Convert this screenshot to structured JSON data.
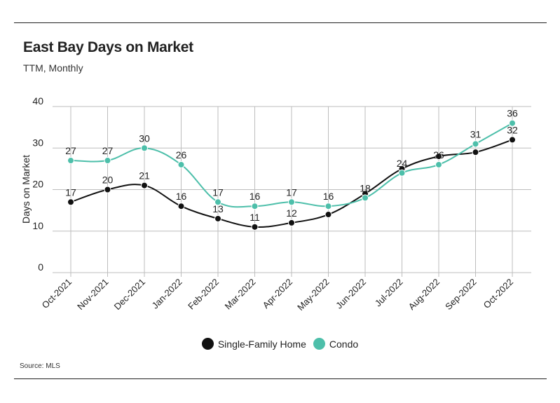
{
  "header": {
    "title": "East Bay Days on Market",
    "subtitle": "TTM, Monthly"
  },
  "footer": {
    "source": "Source:  MLS"
  },
  "colors": {
    "single_family": "#111111",
    "condo": "#4dbfaa",
    "grid": "#bdbdbd",
    "text": "#222222"
  },
  "chart_data": {
    "type": "line",
    "title": "East Bay Days on Market",
    "subtitle": "TTM, Monthly",
    "xlabel": "",
    "ylabel": "Days on Market",
    "ylim": [
      0,
      40
    ],
    "yticks": [
      0,
      10,
      20,
      30,
      40
    ],
    "grid": true,
    "legend_position": "bottom-center",
    "categories": [
      "Oct-2021",
      "Nov-2021",
      "Dec-2021",
      "Jan-2022",
      "Feb-2022",
      "Mar-2022",
      "Apr-2022",
      "May-2022",
      "Jun-2022",
      "Jul-2022",
      "Aug-2022",
      "Sep-2022",
      "Oct-2022"
    ],
    "series": [
      {
        "name": "Single-Family Home",
        "color": "#111111",
        "values": [
          17,
          20,
          21,
          16,
          13,
          11,
          12,
          14,
          19,
          25,
          28,
          29,
          32
        ],
        "labels": [
          "17",
          "20",
          "21",
          "16",
          "13",
          "11",
          "12",
          null,
          null,
          null,
          null,
          null,
          "32"
        ]
      },
      {
        "name": "Condo",
        "color": "#4dbfaa",
        "values": [
          27,
          27,
          30,
          26,
          17,
          16,
          17,
          16,
          18,
          24,
          26,
          31,
          36
        ],
        "labels": [
          "27",
          "27",
          "30",
          "26",
          "17",
          "16",
          "17",
          "16",
          "18",
          "24",
          "26",
          "31",
          "36"
        ]
      }
    ]
  }
}
